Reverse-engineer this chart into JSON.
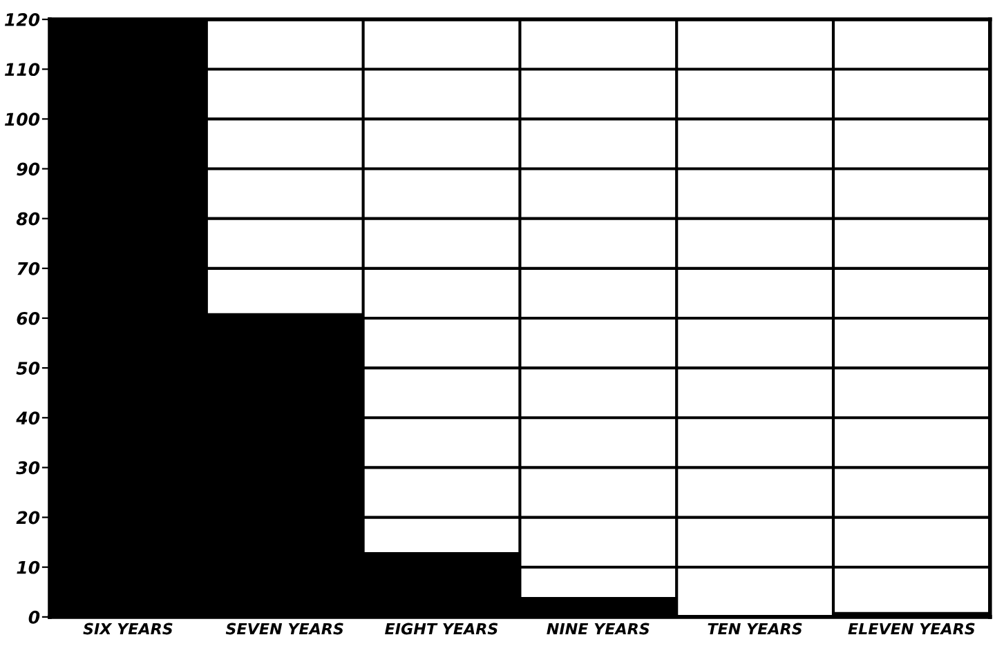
{
  "chart_data": {
    "type": "bar",
    "categories": [
      "SIX YEARS",
      "SEVEN YEARS",
      "EIGHT YEARS",
      "NINE YEARS",
      "TEN YEARS",
      "ELEVEN YEARS"
    ],
    "values": [
      120,
      61,
      13,
      4,
      0,
      1
    ],
    "color": "#000000",
    "ylim": [
      0,
      120
    ],
    "yticks": [
      0,
      10,
      20,
      30,
      40,
      50,
      60,
      70,
      80,
      90,
      100,
      110,
      120
    ],
    "grid": true
  }
}
